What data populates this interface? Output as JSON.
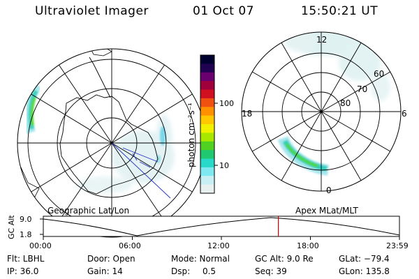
{
  "header": {
    "instrument": "Ultraviolet Imager",
    "date": "01 Oct 07",
    "time": "15:50:21 UT"
  },
  "left_panel": {
    "label": "Geographic Lat/Lon"
  },
  "right_panel": {
    "label": "Apex MLat/MLT",
    "mlt_labels": [
      "12",
      "18",
      "6",
      "0"
    ],
    "lat_labels": [
      "60",
      "70",
      "80"
    ]
  },
  "colorbar": {
    "unit_label": "photon cm⁻²s⁻¹",
    "ticks": [
      "100",
      "10"
    ],
    "colors": [
      "#000030",
      "#200050",
      "#6a0070",
      "#a0003c",
      "#d01020",
      "#f05010",
      "#ff9000",
      "#ffc800",
      "#f0f000",
      "#a8e800",
      "#50d020",
      "#20c870",
      "#28d8c8",
      "#80e8f0",
      "#c8f0f4",
      "#e8f0f0"
    ]
  },
  "altitude_plot": {
    "ylabel": "GC Alt",
    "y_ticks": [
      "9.0",
      "1.8"
    ],
    "time_ticks": [
      "00:00",
      "06:00",
      "12:00",
      "18:00",
      "23:59"
    ],
    "current_time_hours": 15.84,
    "marker_color": "#cc0000"
  },
  "status": {
    "filter": "Flt: LBHL",
    "door": "Door: Open",
    "mode": "Mode: Normal",
    "gc_alt": "GC Alt: 9.0 Re",
    "glat": "GLat: −79.4",
    "ip": "IP: 36.0",
    "gain": "Gain: 14",
    "dsp_key": "Dsp:",
    "dsp_val": "0.5",
    "seq": "Seq: 39",
    "glon": "GLon: 135.8"
  }
}
